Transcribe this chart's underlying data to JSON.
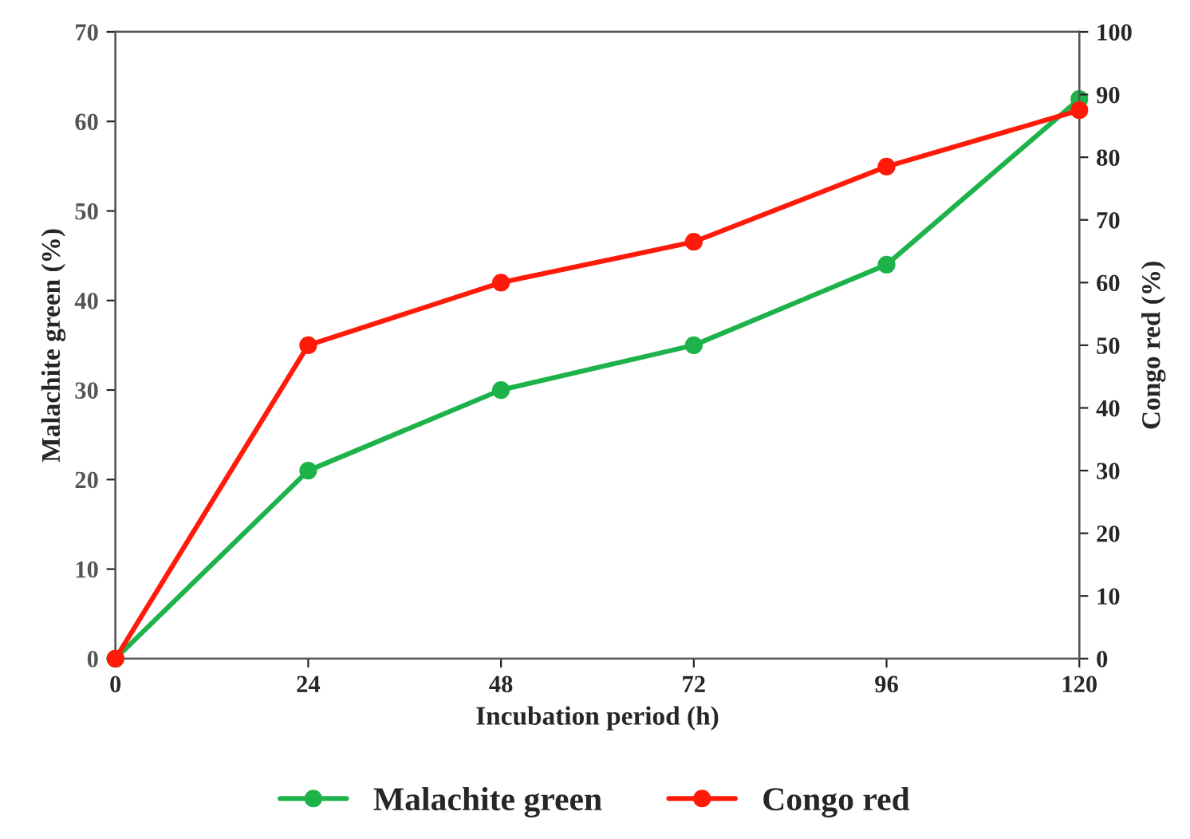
{
  "chart_data": {
    "type": "line",
    "xlabel": "Incubation period (h)",
    "ylabel": "Malachite green (%)",
    "y2label": "Congo red (%)",
    "x": [
      0,
      24,
      48,
      72,
      96,
      120
    ],
    "series": [
      {
        "name": "Malachite green",
        "color": "#1db34a",
        "values": [
          0,
          21,
          30,
          35,
          44,
          62.5
        ]
      },
      {
        "name": "Congo red",
        "color": "#ff1a0a",
        "axis": "y2",
        "values": [
          0,
          50,
          60,
          66.5,
          78.5,
          87.5
        ]
      }
    ],
    "xlim": [
      0,
      120
    ],
    "xticks": [
      0,
      24,
      48,
      72,
      96,
      120
    ],
    "ylim": [
      0,
      70
    ],
    "yticks": [
      0,
      10,
      20,
      30,
      40,
      50,
      60,
      70
    ],
    "y2lim": [
      0,
      100
    ],
    "y2ticks": [
      0,
      10,
      20,
      30,
      40,
      50,
      60,
      70,
      80,
      90,
      100
    ],
    "grid": false,
    "legend": "bottom",
    "marker": "circle",
    "line_style": "solid"
  }
}
